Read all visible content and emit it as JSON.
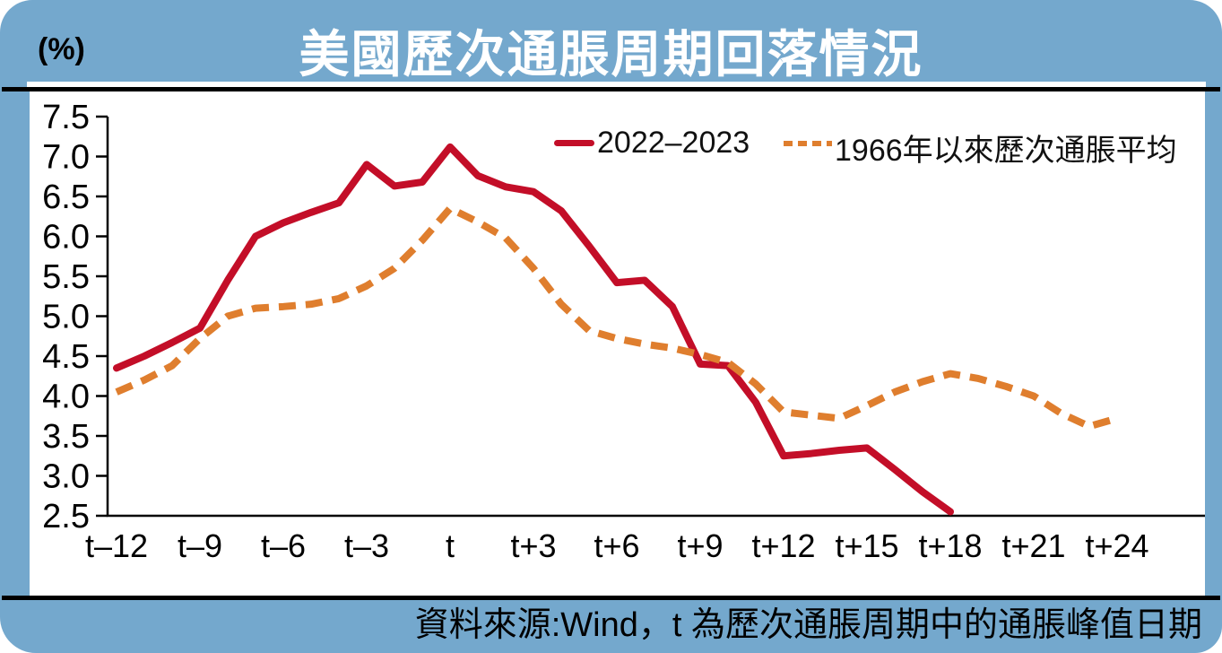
{
  "header": {
    "unit_label": "(%)",
    "title": "美國歷次通脹周期回落情況"
  },
  "legend": [
    {
      "slug": "2022-2023",
      "label": "2022–2023",
      "color": "#c30e28",
      "style": "solid"
    },
    {
      "slug": "1966-average",
      "label": "1966年以來歷次通脹平均",
      "color": "#df7e2e",
      "style": "dashed"
    }
  ],
  "footer": {
    "source_note": "資料來源:Wind，t 為歷次通脹周期中的通脹峰值日期"
  },
  "colors": {
    "card_blue": "#74a8cd",
    "plot_white": "#ffffff",
    "axis_black": "#000000",
    "red_line": "#c30e28",
    "orange_line": "#df7e2e"
  },
  "chart_data": {
    "type": "line",
    "title": "美國歷次通脹周期回落情況",
    "ylabel": "(%)",
    "xlabel": "",
    "x_unit": "months relative to inflation peak month t",
    "ylim": [
      2.5,
      7.5
    ],
    "y_ticks": [
      7.5,
      7.0,
      6.5,
      6.0,
      5.5,
      5.0,
      4.5,
      4.0,
      3.5,
      3.0,
      2.5
    ],
    "x_tick_positions": [
      -12,
      -9,
      -6,
      -3,
      0,
      3,
      6,
      9,
      12,
      15,
      18,
      21,
      24
    ],
    "x_tick_labels": [
      "t–12",
      "t–9",
      "t–6",
      "t–3",
      "t",
      "t+3",
      "t+6",
      "t+9",
      "t+12",
      "t+15",
      "t+18",
      "t+21",
      "t+24"
    ],
    "grid": false,
    "legend_position": "top-right-inside",
    "series": [
      {
        "name": "2022–2023",
        "slug": "2022-2023",
        "color": "#c30e28",
        "dash": null,
        "x_start": -12,
        "x_step_months": 1,
        "values": [
          4.35,
          4.5,
          4.67,
          4.85,
          5.45,
          6.0,
          6.17,
          6.3,
          6.42,
          6.9,
          6.63,
          6.68,
          7.12,
          6.76,
          6.62,
          6.56,
          6.32,
          5.88,
          5.42,
          5.45,
          5.12,
          4.4,
          4.38,
          3.92,
          3.25,
          3.28,
          3.32,
          3.35,
          3.08,
          2.8,
          2.55
        ]
      },
      {
        "name": "1966年以來歷次通脹平均",
        "slug": "1966-average",
        "color": "#df7e2e",
        "dash": [
          19,
          11
        ],
        "x_start": -12,
        "x_step_months": 1,
        "values": [
          4.05,
          4.2,
          4.38,
          4.72,
          5.0,
          5.1,
          5.12,
          5.15,
          5.22,
          5.38,
          5.6,
          5.95,
          6.35,
          6.18,
          5.98,
          5.6,
          5.15,
          4.82,
          4.72,
          4.65,
          4.6,
          4.52,
          4.42,
          4.15,
          3.8,
          3.76,
          3.72,
          3.88,
          4.05,
          4.18,
          4.28,
          4.22,
          4.12,
          4.0,
          3.78,
          3.62,
          3.72
        ]
      }
    ]
  }
}
